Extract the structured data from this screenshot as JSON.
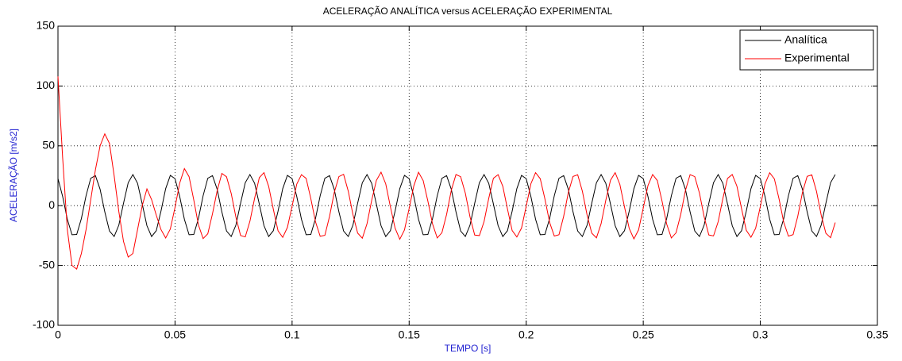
{
  "chart_data": {
    "type": "line",
    "title": "ACELERAÇÃO ANALÍTICA versus ACELERAÇÃO EXPERIMENTAL",
    "x_label": "TEMPO [s]",
    "y_label": "ACELERAÇÃO [m/s2]",
    "xlim": [
      0,
      0.35
    ],
    "ylim": [
      -100,
      150
    ],
    "xticks": [
      0,
      0.05,
      0.1,
      0.15,
      0.2,
      0.25,
      0.3,
      0.35
    ],
    "yticks": [
      -100,
      -50,
      0,
      50,
      100,
      150
    ],
    "grid": true,
    "legend": "upper right",
    "x": [
      0,
      0.002,
      0.004,
      0.006,
      0.008,
      0.01,
      0.012,
      0.014,
      0.016,
      0.018,
      0.02,
      0.022,
      0.024,
      0.026,
      0.028,
      0.03,
      0.032,
      0.034,
      0.036,
      0.038,
      0.04,
      0.042,
      0.044,
      0.046,
      0.048,
      0.05,
      0.052,
      0.054,
      0.056,
      0.058,
      0.06,
      0.062,
      0.064,
      0.066,
      0.068,
      0.07,
      0.072,
      0.074,
      0.076,
      0.078,
      0.08,
      0.082,
      0.084,
      0.086,
      0.088,
      0.09,
      0.092,
      0.094,
      0.096,
      0.098,
      0.1,
      0.102,
      0.104,
      0.106,
      0.108,
      0.11,
      0.112,
      0.114,
      0.116,
      0.118,
      0.12,
      0.122,
      0.124,
      0.126,
      0.128,
      0.13,
      0.132,
      0.134,
      0.136,
      0.138,
      0.14,
      0.142,
      0.144,
      0.146,
      0.148,
      0.15,
      0.152,
      0.154,
      0.156,
      0.158,
      0.16,
      0.162,
      0.164,
      0.166,
      0.168,
      0.17,
      0.172,
      0.174,
      0.176,
      0.178,
      0.18,
      0.182,
      0.184,
      0.186,
      0.188,
      0.19,
      0.192,
      0.194,
      0.196,
      0.198,
      0.2,
      0.202,
      0.204,
      0.206,
      0.208,
      0.21,
      0.212,
      0.214,
      0.216,
      0.218,
      0.22,
      0.222,
      0.224,
      0.226,
      0.228,
      0.23,
      0.232,
      0.234,
      0.236,
      0.238,
      0.24,
      0.242,
      0.244,
      0.246,
      0.248,
      0.25,
      0.252,
      0.254,
      0.256,
      0.258,
      0.26,
      0.262,
      0.264,
      0.266,
      0.268,
      0.27,
      0.272,
      0.274,
      0.276,
      0.278,
      0.28,
      0.282,
      0.284,
      0.286,
      0.288,
      0.29,
      0.292,
      0.294,
      0.296,
      0.298,
      0.3,
      0.302,
      0.304,
      0.306,
      0.308,
      0.31,
      0.312,
      0.314,
      0.316,
      0.318,
      0.32,
      0.322,
      0.324,
      0.326,
      0.328,
      0.33,
      0.332
    ],
    "series": [
      {
        "name": "Analítica",
        "color": "#000000",
        "values": [
          22.6,
          7.7,
          -11.4,
          -24.3,
          -24.1,
          -10.8,
          8.3,
          22.9,
          25.1,
          13.7,
          -5.2,
          -21.2,
          -25.8,
          -16.3,
          2.0,
          19.2,
          26.0,
          18.7,
          1.3,
          -16.8,
          -25.8,
          -20.9,
          -4.6,
          14.2,
          25.3,
          22.6,
          7.7,
          -11.4,
          -24.3,
          -24.1,
          -10.8,
          8.3,
          22.9,
          25.1,
          13.7,
          -5.2,
          -21.2,
          -25.8,
          -16.3,
          2.0,
          19.2,
          26.0,
          18.7,
          1.3,
          -16.8,
          -25.8,
          -20.9,
          -4.6,
          14.2,
          25.3,
          22.6,
          7.7,
          -11.4,
          -24.3,
          -24.1,
          -10.8,
          8.3,
          22.9,
          25.1,
          13.7,
          -5.2,
          -21.2,
          -25.8,
          -16.3,
          2.0,
          19.2,
          26.0,
          18.7,
          1.3,
          -16.8,
          -25.8,
          -20.9,
          -4.6,
          14.2,
          25.3,
          22.6,
          7.7,
          -11.4,
          -24.3,
          -24.1,
          -10.8,
          8.3,
          22.9,
          25.1,
          13.7,
          -5.2,
          -21.2,
          -25.8,
          -16.3,
          2.0,
          19.2,
          26.0,
          18.7,
          1.3,
          -16.8,
          -25.8,
          -20.9,
          -4.6,
          14.2,
          25.3,
          22.6,
          7.7,
          -11.4,
          -24.3,
          -24.1,
          -10.8,
          8.3,
          22.9,
          25.1,
          13.7,
          -5.2,
          -21.2,
          -25.8,
          -16.3,
          2.0,
          19.2,
          26.0,
          18.7,
          1.3,
          -16.8,
          -25.8,
          -20.9,
          -4.6,
          14.2,
          25.3,
          22.6,
          7.7,
          -11.4,
          -24.3,
          -24.1,
          -10.8,
          8.3,
          22.9,
          25.1,
          13.7,
          -5.2,
          -21.2,
          -25.8,
          -16.3,
          2.0,
          19.2,
          26.0,
          18.7,
          1.3,
          -16.8,
          -25.8,
          -20.9,
          -4.6,
          14.2,
          25.3,
          22.6,
          7.7,
          -11.4,
          -24.3,
          -24.1,
          -10.8,
          8.3,
          22.9,
          25.1,
          13.7,
          -5.2,
          -21.2,
          -25.8,
          -16.3,
          2.0,
          19.2,
          26.0
        ]
      },
      {
        "name": "Experimental",
        "color": "#ff0000",
        "values": [
          108,
          40,
          -20,
          -50,
          -53,
          -40,
          -20,
          5,
          30,
          50,
          60,
          52,
          25,
          -5,
          -30,
          -43,
          -40,
          -20,
          0,
          14,
          5,
          -8,
          -20,
          -27.0,
          -19.5,
          -1.4,
          18.9,
          31.0,
          24.2,
          4.8,
          -16.1,
          -27.5,
          -23.5,
          -6.8,
          12.5,
          26.9,
          24.1,
          10.2,
          -9.6,
          -25.0,
          -26.1,
          -13.0,
          6.2,
          23.4,
          27.6,
          16.1,
          -3.1,
          -21.0,
          -26.5,
          -18.2,
          -0.5,
          18.0,
          25.9,
          22.8,
          5.9,
          -13.5,
          -25.6,
          -24.8,
          -9.0,
          10.9,
          24.3,
          26.2,
          12.1,
          -7.5,
          -22.9,
          -27.2,
          -15.1,
          4.4,
          21.1,
          28.0,
          18.2,
          -1.0,
          -18.8,
          -28.1,
          -20.3,
          -2.3,
          16.6,
          27.9,
          20.9,
          3.8,
          -15.3,
          -27.0,
          -22.6,
          -7.3,
          12.8,
          26.0,
          24.2,
          10.4,
          -9.4,
          -24.6,
          -25.0,
          -13.3,
          6.1,
          22.9,
          25.9,
          16.2,
          -2.8,
          -20.8,
          -26.2,
          -18.7,
          -0.6,
          18.3,
          27.6,
          22.5,
          5.5,
          -14.0,
          -25.4,
          -24.3,
          -8.9,
          11.0,
          24.4,
          25.8,
          12.0,
          -7.8,
          -23.0,
          -26.9,
          -15.0,
          4.5,
          21.2,
          27.6,
          17.8,
          -1.2,
          -19.1,
          -27.8,
          -20.2,
          -2.0,
          16.8,
          26.0,
          21.0,
          4.0,
          -15.4,
          -27.0,
          -22.7,
          -7.4,
          12.6,
          25.9,
          24.3,
          10.5,
          -9.3,
          -24.5,
          -25.3,
          -13.4,
          6.0,
          22.8,
          26.0,
          16.3,
          -2.7,
          -20.6,
          -26.4,
          -18.9,
          -0.7,
          18.2,
          27.5,
          22.4,
          5.6,
          -13.9,
          -25.5,
          -24.2,
          -8.8,
          11.1,
          24.5,
          25.7,
          11.9,
          -7.9,
          -23.1,
          -26.8,
          -14.1
        ]
      }
    ]
  }
}
